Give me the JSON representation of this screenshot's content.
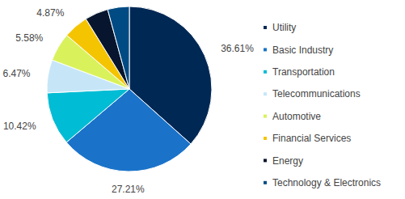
{
  "chart_data": {
    "type": "pie",
    "categories": [
      "Utility",
      "Basic Industry",
      "Transportation",
      "Telecommunications",
      "Automotive",
      "Financial Services",
      "Energy",
      "Technology & Electronics"
    ],
    "values": [
      36.61,
      27.21,
      10.42,
      6.47,
      5.58,
      4.87,
      4.6,
      4.24
    ],
    "value_labels": [
      "36.61%",
      "27.21%",
      "10.42%",
      "6.47%",
      "5.58%",
      "4.87%",
      null,
      null
    ],
    "colors": [
      "#002855",
      "#1a73c9",
      "#00bcd4",
      "#c6e6f8",
      "#d9f25c",
      "#f5c400",
      "#07162e",
      "#004b84"
    ],
    "data_labels": true,
    "legend": "right"
  }
}
